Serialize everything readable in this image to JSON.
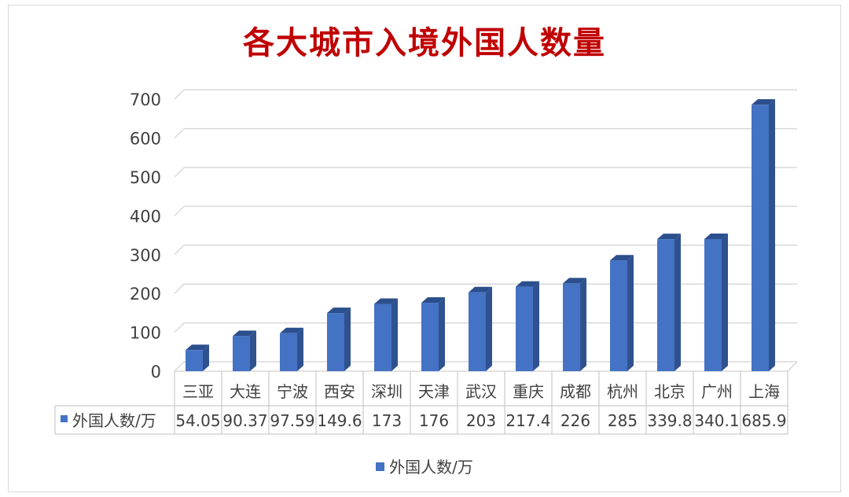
{
  "chart_data": {
    "type": "bar",
    "title": "各大城市入境外国人数量",
    "categories": [
      "三亚",
      "大连",
      "宁波",
      "西安",
      "深圳",
      "天津",
      "武汉",
      "重庆",
      "成都",
      "杭州",
      "北京",
      "广州",
      "上海"
    ],
    "series": [
      {
        "name": "外国人数/万",
        "values": [
          54.05,
          90.37,
          97.59,
          149.6,
          173,
          176,
          203,
          217.4,
          226,
          285,
          339.8,
          340.1,
          685.9
        ],
        "value_labels": [
          "54.05",
          "90.37",
          "97.59",
          "149.6",
          "173",
          "176",
          "203",
          "217.4",
          "226",
          "285",
          "339.8",
          "340.1",
          "685.9"
        ],
        "color": "#4472c4"
      }
    ],
    "y_ticks": [
      "0",
      "100",
      "200",
      "300",
      "400",
      "500",
      "600",
      "700"
    ],
    "ylim": [
      0,
      700
    ],
    "grid": true,
    "legend_position": "bottom",
    "data_table": true
  }
}
